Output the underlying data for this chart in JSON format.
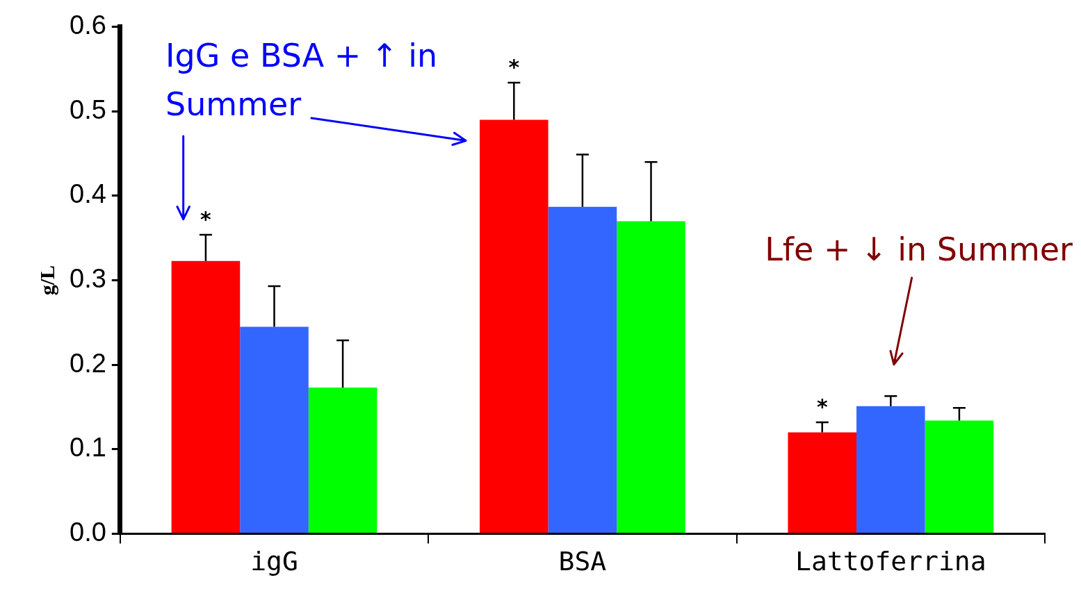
{
  "chart_data": {
    "type": "bar",
    "ylabel": "g/L",
    "categories": [
      "igG",
      "BSA",
      "Lattoferrina"
    ],
    "series": [
      {
        "color": "#ff0000",
        "values": [
          0.323,
          0.49,
          0.12
        ],
        "errors": [
          0.031,
          0.044,
          0.012
        ]
      },
      {
        "color": "#3366ff",
        "values": [
          0.245,
          0.387,
          0.151
        ],
        "errors": [
          0.048,
          0.062,
          0.012
        ]
      },
      {
        "color": "#00ff00",
        "values": [
          0.173,
          0.37,
          0.134
        ],
        "errors": [
          0.056,
          0.07,
          0.015
        ]
      }
    ],
    "ylim": [
      0,
      0.6
    ],
    "yticks": [
      {
        "value": 0,
        "label": "0.0"
      },
      0.1,
      0.2,
      0.3,
      0.4,
      0.5,
      0.6
    ],
    "grid": false,
    "legend": false,
    "annotations": [
      "IgG e BSA + ↑ in Summer",
      "Lfe + ↓ in Summer",
      "*",
      "*",
      "*"
    ]
  }
}
